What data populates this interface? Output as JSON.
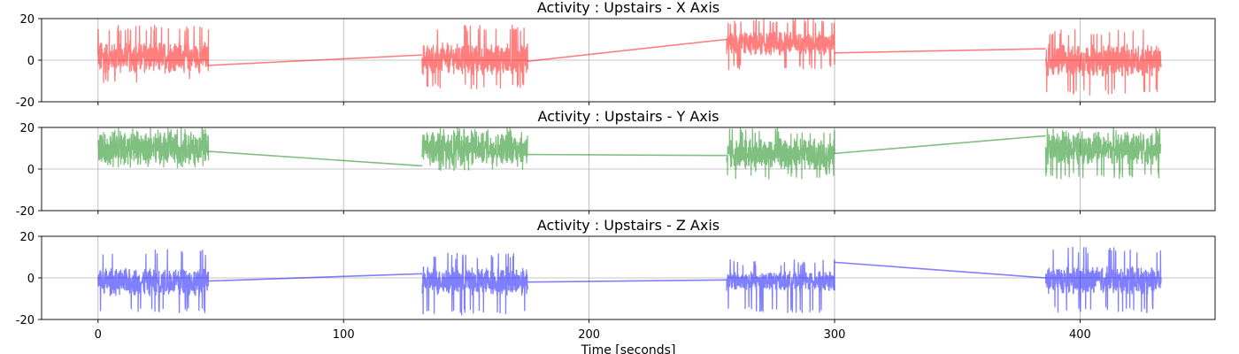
{
  "chart_data": [
    {
      "type": "line",
      "title": "Activity : Upstairs - X Axis",
      "color": "#ff0000",
      "alpha": 0.5,
      "xlim": [
        -23,
        455
      ],
      "ylim": [
        -20,
        20
      ],
      "yticks": [
        -20,
        0,
        20
      ],
      "xticks": [
        0,
        100,
        200,
        300,
        400
      ],
      "grid": true,
      "segments": [
        {
          "x": [
            0,
            45
          ],
          "center": 1.5,
          "amp": 8,
          "min": -11,
          "max": 17
        },
        {
          "x": [
            132,
            175
          ],
          "center": 0.5,
          "amp": 8,
          "min": -14,
          "max": 17
        },
        {
          "x": [
            256,
            300
          ],
          "center": 8,
          "amp": 6,
          "min": -5,
          "max": 20
        },
        {
          "x": [
            386,
            433
          ],
          "center": 0,
          "amp": 8,
          "min": -17,
          "max": 15
        }
      ],
      "connectors": [
        {
          "x": [
            45,
            132
          ],
          "y": [
            -2.5,
            2.5
          ]
        },
        {
          "x": [
            175,
            256
          ],
          "y": [
            -0.5,
            10
          ]
        },
        {
          "x": [
            300,
            386
          ],
          "y": [
            3.5,
            5.5
          ]
        }
      ]
    },
    {
      "type": "line",
      "title": "Activity : Upstairs - Y Axis",
      "color": "#008000",
      "alpha": 0.5,
      "xlim": [
        -23,
        455
      ],
      "ylim": [
        -20,
        20
      ],
      "yticks": [
        -20,
        0,
        20
      ],
      "xticks": [
        0,
        100,
        200,
        300,
        400
      ],
      "grid": true,
      "segments": [
        {
          "x": [
            0,
            45
          ],
          "center": 10,
          "amp": 8,
          "min": 0,
          "max": 20
        },
        {
          "x": [
            132,
            175
          ],
          "center": 10,
          "amp": 8,
          "min": -1,
          "max": 20
        },
        {
          "x": [
            256,
            300
          ],
          "center": 7,
          "amp": 8,
          "min": -5,
          "max": 20
        },
        {
          "x": [
            386,
            433
          ],
          "center": 10,
          "amp": 8,
          "min": -5,
          "max": 20
        }
      ],
      "connectors": [
        {
          "x": [
            45,
            132
          ],
          "y": [
            8.5,
            1.5
          ]
        },
        {
          "x": [
            175,
            256
          ],
          "y": [
            7,
            6.5
          ]
        },
        {
          "x": [
            300,
            386
          ],
          "y": [
            7.5,
            16
          ]
        }
      ]
    },
    {
      "type": "line",
      "title": "Activity : Upstairs - Z Axis",
      "color": "#0000ff",
      "alpha": 0.5,
      "xlim": [
        -23,
        455
      ],
      "ylim": [
        -20,
        20
      ],
      "yticks": [
        -20,
        0,
        20
      ],
      "xticks": [
        0,
        100,
        200,
        300,
        400
      ],
      "xticklabels": [
        "0",
        "100",
        "200",
        "300",
        "400"
      ],
      "xlabel": "Time [seconds]",
      "grid": true,
      "segments": [
        {
          "x": [
            0,
            45
          ],
          "center": -2,
          "amp": 7,
          "min": -17,
          "max": 14
        },
        {
          "x": [
            132,
            175
          ],
          "center": -1.5,
          "amp": 7,
          "min": -18,
          "max": 12
        },
        {
          "x": [
            256,
            300
          ],
          "center": -1.5,
          "amp": 5,
          "min": -17,
          "max": 9
        },
        {
          "x": [
            386,
            433
          ],
          "center": -1,
          "amp": 7,
          "min": -17,
          "max": 15
        }
      ],
      "connectors": [
        {
          "x": [
            45,
            132
          ],
          "y": [
            -1.5,
            2
          ]
        },
        {
          "x": [
            175,
            256
          ],
          "y": [
            -2,
            -1
          ]
        },
        {
          "x": [
            300,
            386
          ],
          "y": [
            7.5,
            0
          ]
        }
      ]
    }
  ]
}
